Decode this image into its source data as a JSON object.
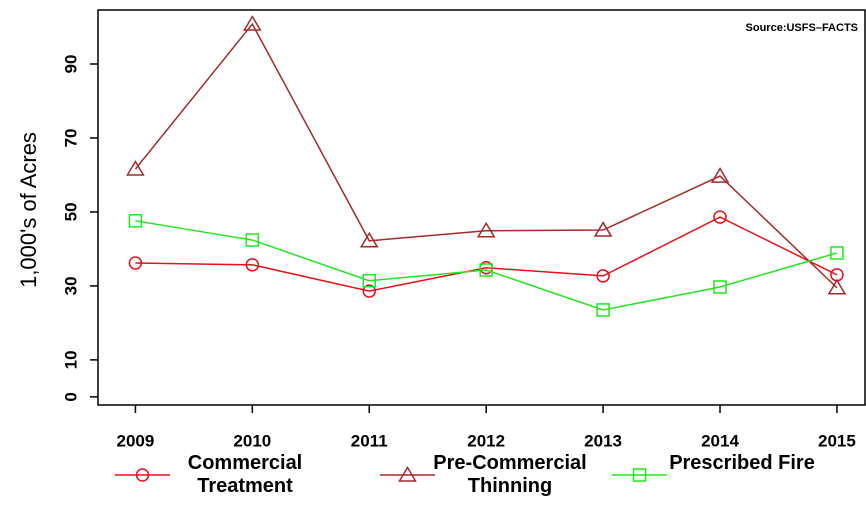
{
  "chart_data": {
    "type": "line",
    "y_label": "1,000's of Acres",
    "annotation": "Source:USFS–FACTS",
    "x": [
      2009,
      2010,
      2011,
      2012,
      2013,
      2014,
      2015
    ],
    "series": [
      {
        "name": "Commercial Treatment",
        "color": "#e8101a",
        "marker": "circle",
        "values": [
          36.2,
          35.7,
          28.6,
          34.9,
          32.7,
          48.6,
          33.0
        ]
      },
      {
        "name": "Pre-Commercial Thinning",
        "color": "#a52a2a",
        "marker": "triangle",
        "values": [
          61.6,
          100.8,
          42.2,
          44.9,
          45.1,
          59.7,
          29.5
        ]
      },
      {
        "name": "Prescribed Fire",
        "color": "#22e622",
        "marker": "square",
        "values": [
          47.6,
          42.4,
          31.4,
          34.3,
          23.5,
          29.7,
          38.9
        ]
      }
    ],
    "xlim": [
      2008.68,
      2015.24
    ],
    "ylim": [
      -2.2,
      104.6
    ],
    "xticks": [
      2009,
      2010,
      2011,
      2012,
      2013,
      2014,
      2015
    ],
    "yticks": [
      0,
      10,
      30,
      50,
      70,
      90
    ]
  }
}
